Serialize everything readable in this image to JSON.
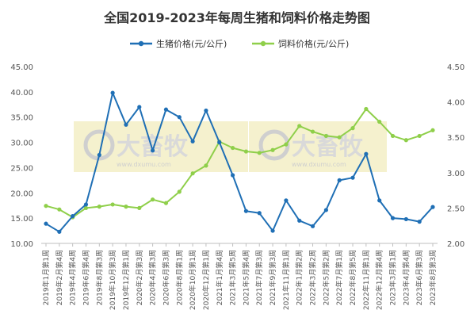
{
  "chart_data": {
    "type": "line",
    "title": "全国2019-2023年每周生猪和饲料价格走势图",
    "watermark": {
      "brand": "大畜牧",
      "url": "www.dxumu.com"
    },
    "x_tick_labels": [
      "2019年1月第1周",
      "2019年2月第4周",
      "2019年4月第4周",
      "2019年6月第4周",
      "2019年8月第3周",
      "2019年10月第3周",
      "2019年12月第1周",
      "2020年2月第3周",
      "2020年4月第3周",
      "2020年6月第3周",
      "2020年8月第1周",
      "2020年10月第1周",
      "2020年12月第1周",
      "2021年1月第4周",
      "2021年3月第5周",
      "2021年5月第4周",
      "2021年7月第3周",
      "2021年9月第3周",
      "2021年11月第1周",
      "2022年1月第2周",
      "2022年3月第2周",
      "2022年5月第2周",
      "2022年7月第1周",
      "2022年8月第5周",
      "2022年11月第1周",
      "2022年12月第4周",
      "2023年3月第1周",
      "2023年4月第4周",
      "2023年6月第3周",
      "2023年8月第3周"
    ],
    "y_left": {
      "min": 10,
      "max": 45,
      "ticks": [
        "10.00",
        "15.00",
        "20.00",
        "25.00",
        "30.00",
        "35.00",
        "40.00",
        "45.00"
      ]
    },
    "y_right": {
      "min": 2.0,
      "max": 4.5,
      "ticks": [
        "2.00",
        "2.50",
        "3.00",
        "3.50",
        "4.00",
        "4.50"
      ]
    },
    "legend_position": "top-center",
    "grid": "none",
    "series": [
      {
        "name": "生猪价格(元/公斤)",
        "axis": "left",
        "color": "#1f6fb5",
        "values": [
          13.9,
          12.3,
          15.4,
          17.7,
          27.5,
          39.8,
          33.5,
          37.0,
          28.4,
          36.5,
          35.0,
          30.2,
          36.3,
          30.0,
          23.5,
          16.4,
          16.0,
          12.5,
          18.5,
          14.5,
          13.4,
          16.6,
          22.5,
          23.0,
          27.7,
          18.5,
          15.0,
          14.8,
          14.3,
          17.2
        ]
      },
      {
        "name": "饲料价格(元/公斤)",
        "axis": "right",
        "color": "#8fcf4a",
        "values": [
          2.53,
          2.48,
          2.37,
          2.5,
          2.52,
          2.55,
          2.52,
          2.5,
          2.62,
          2.57,
          2.73,
          2.99,
          3.1,
          3.44,
          3.35,
          3.3,
          3.28,
          3.32,
          3.4,
          3.66,
          3.58,
          3.52,
          3.5,
          3.63,
          3.9,
          3.72,
          3.52,
          3.46,
          3.52,
          3.6
        ]
      }
    ]
  }
}
